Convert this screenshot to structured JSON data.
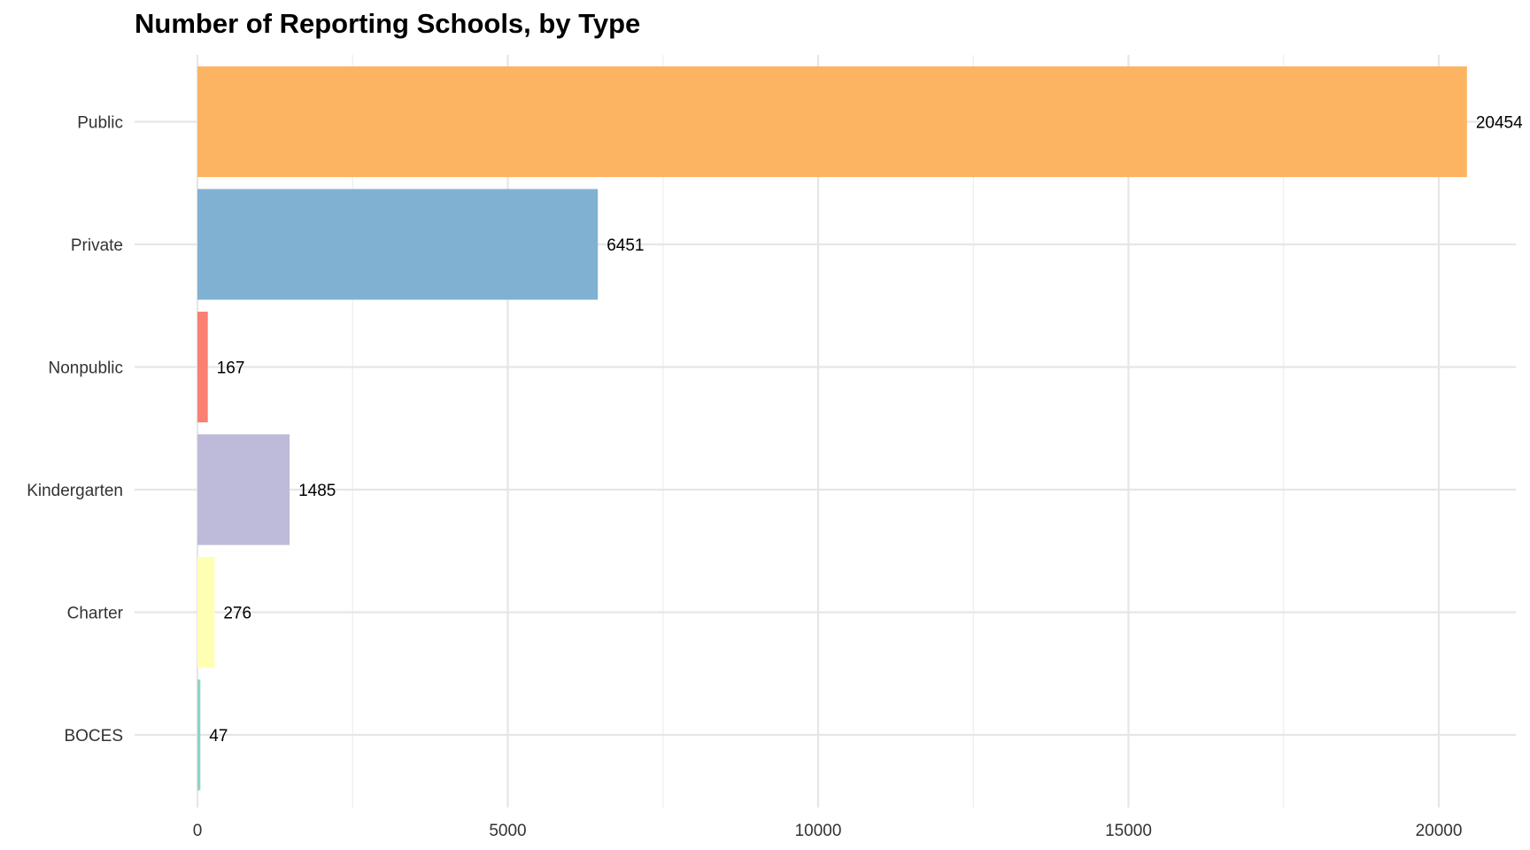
{
  "chart_data": {
    "type": "bar",
    "orientation": "horizontal",
    "title": "Number of Reporting Schools, by Type",
    "xlabel": "",
    "ylabel": "",
    "categories": [
      "BOCES",
      "Charter",
      "Kindergarten",
      "Nonpublic",
      "Private",
      "Public"
    ],
    "values": [
      47,
      276,
      1485,
      167,
      6451,
      20454
    ],
    "value_labels": [
      "47",
      "276",
      "1485",
      "167",
      "6451",
      "20454"
    ],
    "colors": [
      "#8dd3c7",
      "#ffffb3",
      "#bebada",
      "#fb8072",
      "#80b1d3",
      "#fdb462"
    ],
    "xlim": [
      -1000,
      21500
    ],
    "xticks": [
      0,
      5000,
      10000,
      15000,
      20000
    ],
    "xtick_labels": [
      "0",
      "5000",
      "10000",
      "15000",
      "20000"
    ],
    "grid": true,
    "legend": "none"
  }
}
